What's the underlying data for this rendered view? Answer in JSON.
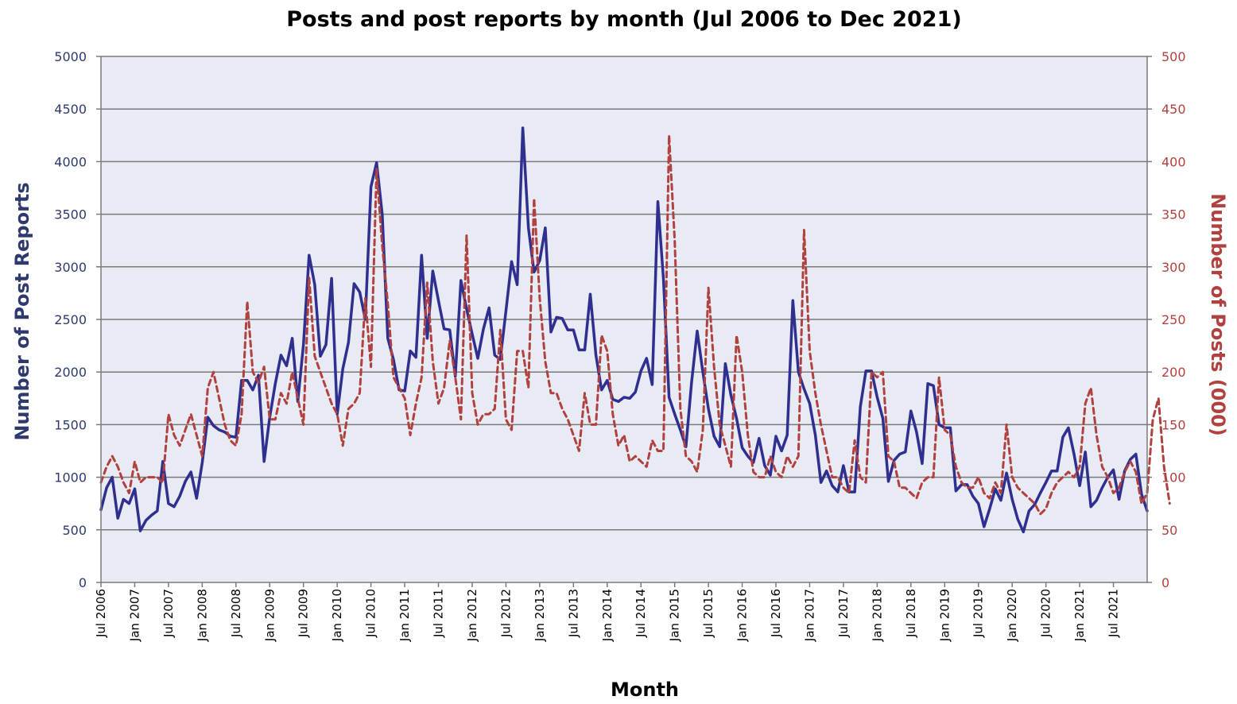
{
  "chart_data": {
    "type": "line",
    "title": "Posts and post reports by month (Jul 2006 to Dec 2021)",
    "xlabel": "Month",
    "ylabel_left": "Number of Post Reports",
    "ylabel_right": "Number of Posts (000)",
    "ylim_left": [
      0,
      5000
    ],
    "ylim_right": [
      0,
      500
    ],
    "yticks_left": [
      "0",
      "500",
      "1000",
      "1500",
      "2000",
      "2500",
      "3000",
      "3500",
      "4000",
      "4500",
      "5000"
    ],
    "yticks_right": [
      "0",
      "50",
      "100",
      "150",
      "200",
      "250",
      "300",
      "350",
      "400",
      "450",
      "500"
    ],
    "x_start": "Jul 2006",
    "x_end": "Dec 2021",
    "x_tick_labels": [
      "Jul 2006",
      "Jan 2007",
      "Jul 2007",
      "Jan 2008",
      "Jul 2008",
      "Jan 2009",
      "Jul 2009",
      "Jan 2010",
      "Jul 2010",
      "Jan 2011",
      "Jul 2011",
      "Jan 2012",
      "Jul 2012",
      "Jan 2013",
      "Jul 2013",
      "Jan 2014",
      "Jul 2014",
      "Jan 2015",
      "Jul 2015",
      "Jan 2016",
      "Jul 2016",
      "Jan 2017",
      "Jul 2017",
      "Jan 2018",
      "Jul 2018",
      "Jan 2019",
      "Jul 2019",
      "Jan 2020",
      "Jul 2020",
      "Jan 2021",
      "Jul 2021"
    ],
    "grid": true,
    "colors": {
      "reports": "#2f2f8f",
      "posts": "#b0413e",
      "plot_bg": "#e8eaf4",
      "grid": "#7a7a7a",
      "left_axis_text": "#2e3a6e",
      "right_axis_text": "#b0413e"
    },
    "series": [
      {
        "axis": "left",
        "style": "solid",
        "values": [
          690,
          900,
          1000,
          610,
          790,
          750,
          890,
          490,
          590,
          640,
          680,
          1150,
          750,
          720,
          820,
          960,
          1050,
          800,
          1140,
          1570,
          1490,
          1450,
          1430,
          1390,
          1380,
          1920,
          1920,
          1830,
          1970,
          1150,
          1570,
          1890,
          2160,
          2060,
          2320,
          1720,
          2260,
          3110,
          2830,
          2150,
          2260,
          2890,
          1600,
          2030,
          2280,
          2840,
          2760,
          2500,
          3760,
          3990,
          3500,
          2320,
          2120,
          1830,
          1820,
          2200,
          2140,
          3110,
          2320,
          2960,
          2680,
          2410,
          2400,
          1960,
          2870,
          2600,
          2360,
          2130,
          2410,
          2610,
          2160,
          2120,
          2580,
          3050,
          2830,
          4320,
          3370,
          2950,
          3060,
          3370,
          2380,
          2520,
          2510,
          2400,
          2400,
          2210,
          2210,
          2740,
          2160,
          1830,
          1920,
          1740,
          1720,
          1760,
          1750,
          1810,
          2010,
          2130,
          1880,
          3620,
          2890,
          1760,
          1600,
          1450,
          1290,
          1900,
          2390,
          2000,
          1650,
          1390,
          1290,
          2080,
          1780,
          1560,
          1280,
          1200,
          1140,
          1370,
          1110,
          1020,
          1390,
          1250,
          1400,
          2680,
          2000,
          1840,
          1700,
          1400,
          950,
          1060,
          920,
          860,
          1110,
          860,
          860,
          1670,
          2010,
          2010,
          1760,
          1560,
          960,
          1160,
          1220,
          1240,
          1630,
          1430,
          1130,
          1890,
          1870,
          1500,
          1470,
          1470,
          870,
          930,
          930,
          820,
          750,
          530,
          700,
          890,
          780,
          1040,
          790,
          600,
          480,
          680,
          740,
          850,
          950,
          1060,
          1060,
          1380,
          1470,
          1220,
          920,
          1240,
          720,
          780,
          900,
          1000,
          1070,
          790,
          1060,
          1170,
          1220,
          840,
          680
        ]
      },
      {
        "axis": "right",
        "style": "dashed",
        "values": [
          95,
          110,
          120,
          110,
          95,
          85,
          115,
          95,
          100,
          100,
          100,
          95,
          160,
          140,
          130,
          145,
          160,
          140,
          120,
          185,
          200,
          175,
          150,
          135,
          130,
          160,
          267,
          200,
          190,
          205,
          155,
          155,
          180,
          170,
          200,
          175,
          150,
          290,
          215,
          200,
          185,
          170,
          160,
          130,
          165,
          170,
          180,
          270,
          205,
          393,
          320,
          265,
          195,
          185,
          175,
          140,
          170,
          195,
          285,
          210,
          170,
          185,
          230,
          195,
          155,
          330,
          180,
          150,
          160,
          160,
          165,
          240,
          155,
          145,
          220,
          220,
          185,
          365,
          270,
          210,
          180,
          180,
          165,
          155,
          140,
          125,
          180,
          150,
          150,
          235,
          220,
          160,
          130,
          140,
          115,
          120,
          115,
          110,
          135,
          125,
          125,
          425,
          325,
          165,
          120,
          115,
          105,
          145,
          280,
          205,
          150,
          130,
          110,
          235,
          200,
          140,
          105,
          100,
          100,
          120,
          105,
          100,
          120,
          110,
          120,
          335,
          220,
          180,
          150,
          125,
          100,
          100,
          90,
          85,
          135,
          100,
          95,
          200,
          195,
          200,
          120,
          115,
          90,
          90,
          85,
          80,
          95,
          100,
          100,
          195,
          145,
          140,
          110,
          95,
          90,
          90,
          100,
          85,
          80,
          95,
          85,
          150,
          100,
          90,
          85,
          80,
          75,
          65,
          70,
          85,
          95,
          100,
          105,
          100,
          110,
          170,
          185,
          140,
          110,
          100,
          85,
          90,
          105,
          115,
          105,
          75,
          85,
          155,
          175,
          110,
          75
        ]
      }
    ]
  }
}
